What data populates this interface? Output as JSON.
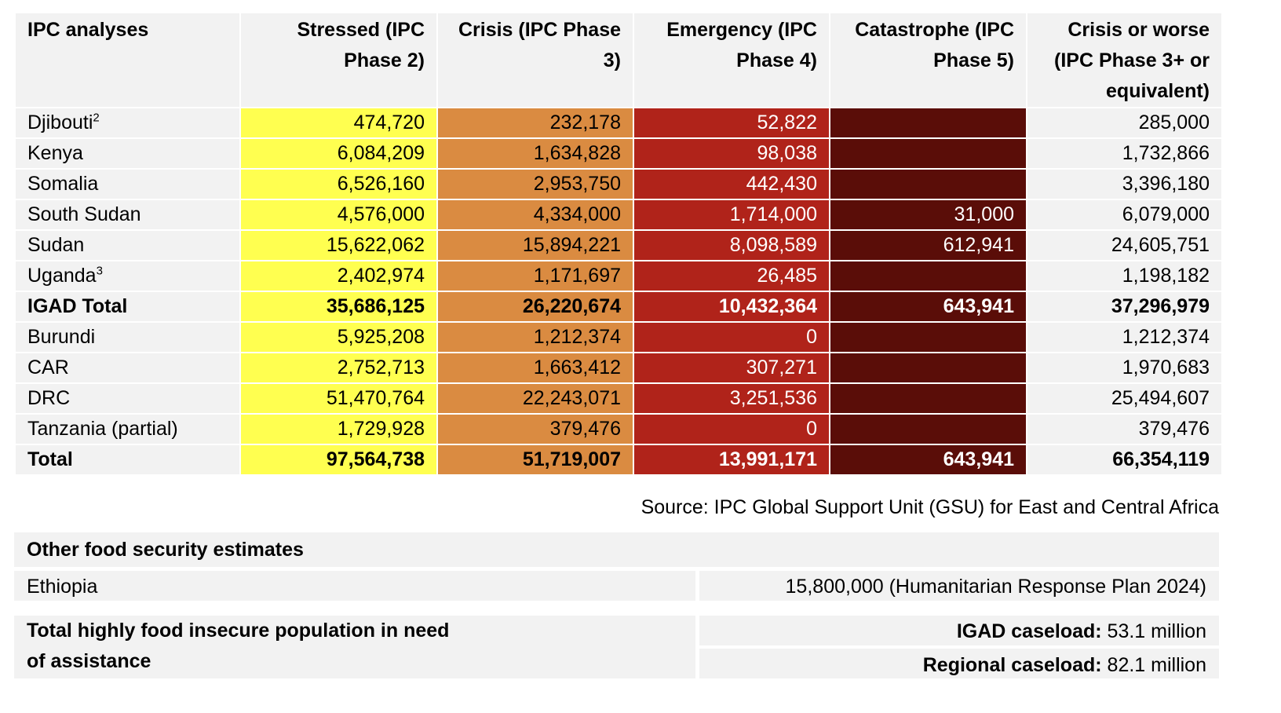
{
  "table": {
    "headers": [
      "IPC analyses",
      "Stressed (IPC Phase 2)",
      "Crisis (IPC Phase 3)",
      "Emergency (IPC Phase 4)",
      "Catastrophe (IPC Phase 5)",
      "Crisis or worse (IPC Phase 3+ or equivalent)"
    ],
    "rows": [
      {
        "name": "Djibouti",
        "sup": "2",
        "p2": "474,720",
        "p3": "232,178",
        "p4": "52,822",
        "p5": "",
        "p3plus": "285,000"
      },
      {
        "name": "Kenya",
        "sup": "",
        "p2": "6,084,209",
        "p3": "1,634,828",
        "p4": "98,038",
        "p5": "",
        "p3plus": "1,732,866"
      },
      {
        "name": "Somalia",
        "sup": "",
        "p2": "6,526,160",
        "p3": "2,953,750",
        "p4": "442,430",
        "p5": "",
        "p3plus": "3,396,180"
      },
      {
        "name": "South Sudan",
        "sup": "",
        "p2": "4,576,000",
        "p3": "4,334,000",
        "p4": "1,714,000",
        "p5": "31,000",
        "p3plus": "6,079,000"
      },
      {
        "name": "Sudan",
        "sup": "",
        "p2": "15,622,062",
        "p3": "15,894,221",
        "p4": "8,098,589",
        "p5": "612,941",
        "p3plus": "24,605,751"
      },
      {
        "name": "Uganda",
        "sup": "3",
        "p2": "2,402,974",
        "p3": "1,171,697",
        "p4": "26,485",
        "p5": "",
        "p3plus": "1,198,182"
      },
      {
        "name": "IGAD Total",
        "sup": "",
        "bold": true,
        "p2": "35,686,125",
        "p3": "26,220,674",
        "p4": "10,432,364",
        "p5": "643,941",
        "p3plus": "37,296,979"
      },
      {
        "name": "Burundi",
        "sup": "",
        "p2": "5,925,208",
        "p3": "1,212,374",
        "p4": "0",
        "p5": "",
        "p3plus": "1,212,374"
      },
      {
        "name": "CAR",
        "sup": "",
        "p2": "2,752,713",
        "p3": "1,663,412",
        "p4": "307,271",
        "p5": "",
        "p3plus": "1,970,683"
      },
      {
        "name": "DRC",
        "sup": "",
        "p2": "51,470,764",
        "p3": "22,243,071",
        "p4": "3,251,536",
        "p5": "",
        "p3plus": "25,494,607"
      },
      {
        "name": "Tanzania (partial)",
        "sup": "",
        "p2": "1,729,928",
        "p3": "379,476",
        "p4": "0",
        "p5": "",
        "p3plus": "379,476"
      },
      {
        "name": "Total",
        "sup": "",
        "bold": true,
        "p2": "97,564,738",
        "p3": "51,719,007",
        "p4": "13,991,171",
        "p5": "643,941",
        "p3plus": "66,354,119"
      }
    ]
  },
  "source": "Source: IPC Global Support Unit (GSU) for East and Central Africa",
  "other": {
    "title": "Other food security estimates",
    "ethiopia_label": "Ethiopia",
    "ethiopia_value": "15,800,000 (Humanitarian Response Plan 2024)"
  },
  "total_need": {
    "label": "Total highly food insecure population in need of assistance",
    "igad_label": "IGAD caseload:",
    "igad_value": " 53.1 million",
    "regional_label": "Regional caseload:",
    "regional_value": " 82.1 million"
  },
  "colors": {
    "phase2": "#ffff50",
    "phase3": "#da8b41",
    "phase4": "#b0231a",
    "phase5": "#5a0d08",
    "neutral": "#f2f2f2"
  }
}
